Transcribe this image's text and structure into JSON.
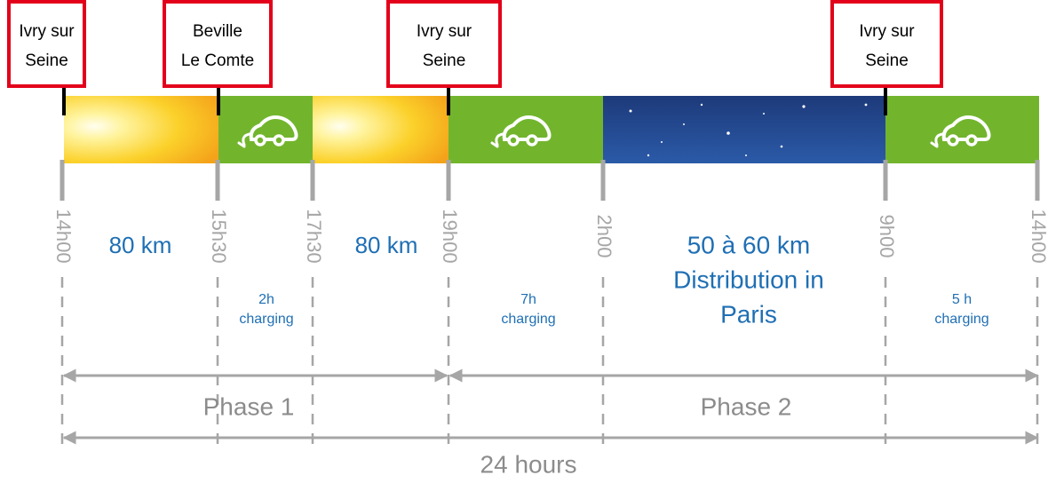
{
  "signs": [
    {
      "lines": [
        "Ivry sur",
        "Seine"
      ]
    },
    {
      "lines": [
        "Beville",
        "Le Comte"
      ]
    },
    {
      "lines": [
        "Ivry sur",
        "Seine"
      ]
    },
    {
      "lines": [
        "Ivry sur",
        "Seine"
      ]
    }
  ],
  "times": [
    "14h00",
    "15h30",
    "17h30",
    "19h00",
    "2h00",
    "9h00",
    "14h00"
  ],
  "segments": [
    {
      "lines": [
        "80 km"
      ]
    },
    {
      "lines": [
        "2h",
        "charging"
      ]
    },
    {
      "lines": [
        "80 km"
      ]
    },
    {
      "lines": [
        "7h",
        "charging"
      ]
    },
    {
      "lines": [
        "50 à 60 km",
        "Distribution in",
        "Paris"
      ]
    },
    {
      "lines": [
        "5 h",
        "charging"
      ]
    }
  ],
  "phases": [
    "Phase 1",
    "Phase 2"
  ],
  "total": "24 hours"
}
